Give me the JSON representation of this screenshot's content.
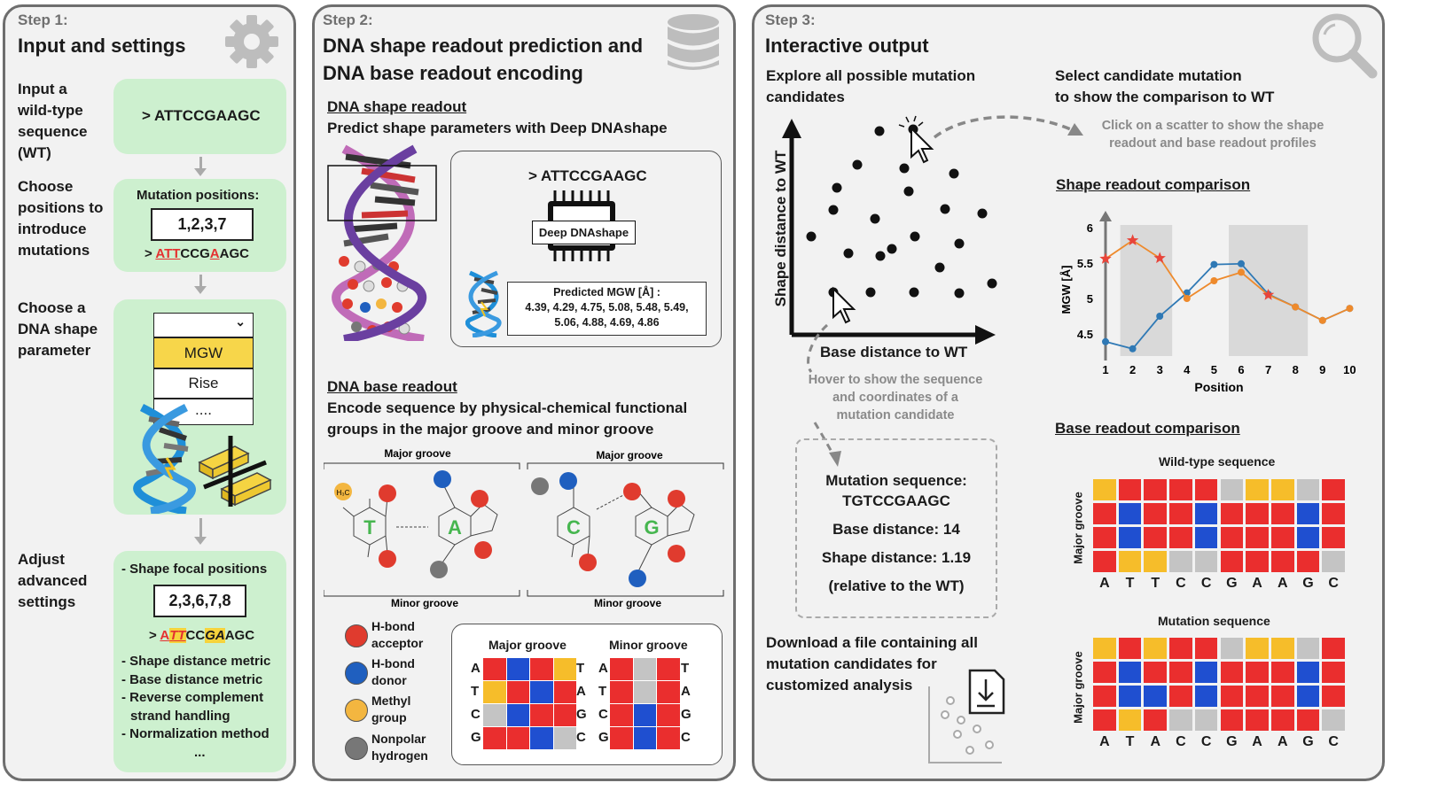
{
  "step1": {
    "step_label": "Step 1:",
    "title": "Input and settings",
    "input_label": [
      "Input a",
      "wild-type",
      "sequence",
      "(WT)"
    ],
    "input_seq": "> ATTCCGAAGC",
    "choose_pos_label": [
      "Choose",
      "positions to",
      "introduce",
      "mutations"
    ],
    "mutation_positions_label": "Mutation positions:",
    "mutation_positions_value": "1,2,3,7",
    "mut_seq": {
      "prefix": "> ",
      "m1": "ATT",
      "mid": "CCG",
      "m2": "A",
      "rest": "AGC"
    },
    "choose_shape_label": [
      "Choose a",
      "DNA shape",
      "parameter"
    ],
    "dropdown": {
      "blank": "",
      "chevron": "⌄",
      "options": [
        "MGW",
        "Rise",
        "...."
      ]
    },
    "adv_label": [
      "Adjust",
      "advanced",
      "settings"
    ],
    "shape_focal_label": "- Shape focal positions",
    "shape_focal_value": "2,3,6,7,8",
    "focal_seq": {
      "prefix": "> ",
      "a": "A",
      "tt": "TT",
      "cc": "CC",
      "ga": "GA",
      "agc": "AGC"
    },
    "adv_items": [
      "- Shape distance metric",
      "- Base distance metric",
      "- Reverse complement",
      "strand handling",
      "- Normalization method",
      "..."
    ]
  },
  "step2": {
    "step_label": "Step 2:",
    "title": [
      "DNA shape readout prediction and",
      "DNA base readout encoding"
    ],
    "shape_heading": "DNA shape readout",
    "shape_desc": "Predict shape parameters with Deep DNAshape",
    "seq": "> ATTCCGAAGC",
    "chip_label": "Deep DNAshape",
    "pred_title": "Predicted MGW [Å] :",
    "pred_values": [
      "4.39, 4.29, 4.75, 5.08, 5.48, 5.49,",
      "5.06, 4.88, 4.69, 4.86"
    ],
    "base_heading": "DNA base readout",
    "base_desc": [
      "Encode sequence by physical-chemical functional",
      "groups in the major groove and minor groove"
    ],
    "major_groove": "Major groove",
    "minor_groove": "Minor groove",
    "methyl_label": "H₃C",
    "bases": [
      "T",
      "A",
      "C",
      "G"
    ],
    "legend": [
      {
        "label": [
          "H-bond",
          "acceptor"
        ],
        "color": "#e03b2e"
      },
      {
        "label": [
          "H-bond",
          "donor"
        ],
        "color": "#1f5fbf"
      },
      {
        "label": [
          "Methyl",
          "group"
        ],
        "color": "#f3b640"
      },
      {
        "label": [
          "Nonpolar",
          "hydrogen"
        ],
        "color": "#777777"
      }
    ],
    "enc_rows": [
      "A",
      "T",
      "C",
      "G"
    ],
    "enc_right": [
      "T",
      "A",
      "G",
      "C"
    ],
    "enc_major": [
      [
        "#ea2e2e",
        "#1f4fd0",
        "#ea2e2e",
        "#f6bd2a"
      ],
      [
        "#f6bd2a",
        "#ea2e2e",
        "#1f4fd0",
        "#ea2e2e"
      ],
      [
        "#c4c4c4",
        "#1f4fd0",
        "#ea2e2e",
        "#ea2e2e"
      ],
      [
        "#ea2e2e",
        "#ea2e2e",
        "#1f4fd0",
        "#c4c4c4"
      ]
    ],
    "enc_minor": [
      [
        "#ea2e2e",
        "#c4c4c4",
        "#ea2e2e"
      ],
      [
        "#ea2e2e",
        "#c4c4c4",
        "#ea2e2e"
      ],
      [
        "#ea2e2e",
        "#1f4fd0",
        "#ea2e2e"
      ],
      [
        "#ea2e2e",
        "#1f4fd0",
        "#ea2e2e"
      ]
    ]
  },
  "step3": {
    "step_label": "Step 3:",
    "title": "Interactive output",
    "explore": [
      "Explore all possible mutation",
      "candidates"
    ],
    "ylabel": "Shape distance to WT",
    "xlabel": "Base distance to WT",
    "hover_text": [
      "Hover to show the sequence",
      "and coordinates of a",
      "mutation candidate"
    ],
    "mutation_info": [
      "Mutation sequence:",
      "TGTCCGAAGC",
      "Base distance: 14",
      "Shape distance: 1.19",
      "(relative to the WT)"
    ],
    "download": [
      "Download a file containing all",
      "mutation candidates for",
      "customized analysis"
    ],
    "select": [
      "Select candidate mutation",
      "to show the comparison to WT"
    ],
    "click_hint": [
      "Click on a scatter to show the shape",
      "readout and base readout profiles"
    ],
    "shape_cmp_heading": "Shape readout comparison",
    "base_cmp_heading": "Base readout comparison",
    "wt_title": "Wild-type sequence",
    "mut_title": "Mutation sequence",
    "major_label": "Major groove",
    "wt_letters": [
      "A",
      "T",
      "T",
      "C",
      "C",
      "G",
      "A",
      "A",
      "G",
      "C"
    ],
    "mut_letters": [
      "A",
      "T",
      "A",
      "C",
      "C",
      "G",
      "A",
      "A",
      "G",
      "C"
    ]
  },
  "chart_data": {
    "type": "line",
    "x": [
      1,
      2,
      3,
      4,
      5,
      6,
      7,
      8,
      9,
      10
    ],
    "ylabel": "MGW [Å]",
    "xlabel": "Position",
    "yticks": [
      4.5,
      5,
      5.5,
      6
    ],
    "ylim": [
      4.2,
      6.2
    ],
    "shaded": [
      [
        2,
        3
      ],
      [
        6,
        8
      ]
    ],
    "series": [
      {
        "values": [
          4.39,
          4.29,
          4.75,
          5.08,
          5.48,
          5.49,
          5.06,
          4.88,
          4.69,
          4.86
        ],
        "color": "#2f79b5"
      },
      {
        "values": [
          5.56,
          5.82,
          5.57,
          5.0,
          5.25,
          5.37,
          5.05,
          4.88,
          4.69,
          4.86
        ],
        "color": "#ee8a2c",
        "star_points": [
          1,
          2,
          3,
          7
        ]
      }
    ]
  }
}
